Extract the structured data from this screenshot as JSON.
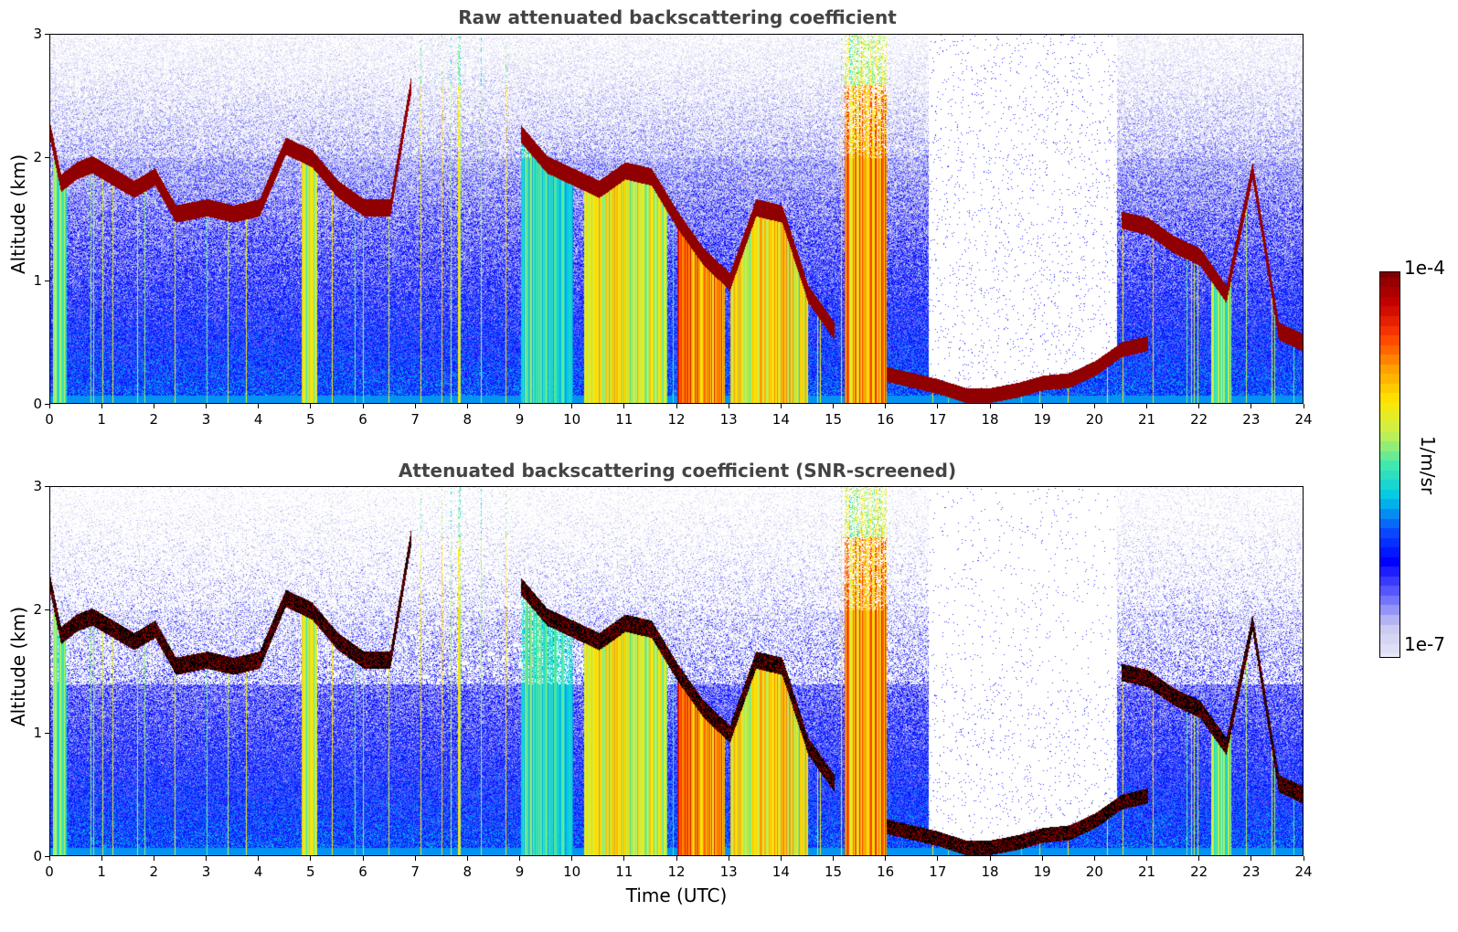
{
  "colors": {
    "colormap": [
      "#e8e8f8",
      "#c8c8f0",
      "#6060ff",
      "#0000ff",
      "#0a50ff",
      "#00c8e6",
      "#40e8b0",
      "#c8f050",
      "#ffe600",
      "#ffa000",
      "#ff4000",
      "#c80000",
      "#800000"
    ],
    "screened_layer": "#000000",
    "title": "#444444"
  },
  "chart_data": [
    {
      "type": "heatmap",
      "title": "Raw attenuated backscattering coefficient",
      "xlabel": "",
      "ylabel": "Altitude (km)",
      "xlim": [
        0,
        24
      ],
      "ylim": [
        0,
        3
      ],
      "xticks": [
        "0",
        "1",
        "2",
        "3",
        "4",
        "5",
        "6",
        "7",
        "8",
        "9",
        "10",
        "11",
        "12",
        "13",
        "14",
        "15",
        "16",
        "17",
        "18",
        "19",
        "20",
        "21",
        "22",
        "23",
        "24"
      ],
      "yticks": [
        "0",
        "1",
        "2",
        "3"
      ],
      "cloud_layer_altitude_km": {
        "x": [
          0,
          0.2,
          0.5,
          0.8,
          1.2,
          1.6,
          2.0,
          2.4,
          3.0,
          3.5,
          4.0,
          4.5,
          5.0,
          5.5,
          6.0,
          6.5,
          6.9
        ],
        "y": [
          2.2,
          1.8,
          1.9,
          1.95,
          1.85,
          1.75,
          1.85,
          1.55,
          1.6,
          1.55,
          1.6,
          2.1,
          2.0,
          1.75,
          1.6,
          1.6,
          2.6
        ]
      },
      "upper_cloud_segments_km": {
        "x": [
          9.0,
          9.5,
          10.0,
          10.5,
          11.0,
          11.5,
          12.0,
          12.5,
          13.0,
          13.5,
          14.0,
          14.5,
          15.0
        ],
        "y": [
          2.2,
          1.95,
          1.85,
          1.75,
          1.9,
          1.85,
          1.5,
          1.2,
          1.0,
          1.6,
          1.55,
          0.9,
          0.6
        ]
      },
      "boundary_layer_km": {
        "x": [
          16.0,
          16.5,
          17.0,
          17.5,
          18.0,
          18.5,
          19.0,
          19.5,
          20.0,
          20.5,
          21.0
        ],
        "y": [
          0.25,
          0.2,
          0.15,
          0.08,
          0.08,
          0.12,
          0.18,
          0.2,
          0.3,
          0.45,
          0.5
        ]
      },
      "late_cloud_km": {
        "x": [
          20.5,
          21.0,
          21.5,
          22.0,
          22.5,
          23.0,
          23.5,
          24.0
        ],
        "y": [
          1.5,
          1.45,
          1.3,
          1.2,
          0.9,
          1.9,
          0.6,
          0.5
        ]
      }
    },
    {
      "type": "heatmap",
      "title": "Attenuated backscattering coefficient (SNR-screened)",
      "xlabel": "Time (UTC)",
      "ylabel": "Altitude (km)",
      "xlim": [
        0,
        24
      ],
      "ylim": [
        0,
        3
      ],
      "xticks": [
        "0",
        "1",
        "2",
        "3",
        "4",
        "5",
        "6",
        "7",
        "8",
        "9",
        "10",
        "11",
        "12",
        "13",
        "14",
        "15",
        "16",
        "17",
        "18",
        "19",
        "20",
        "21",
        "22",
        "23",
        "24"
      ],
      "yticks": [
        "0",
        "1",
        "2",
        "3"
      ]
    }
  ],
  "colorbar": {
    "label": "1/m/sr",
    "max_label": "1e-4",
    "min_label": "1e-7",
    "range": [
      1e-07,
      0.0001
    ],
    "scale": "log"
  }
}
